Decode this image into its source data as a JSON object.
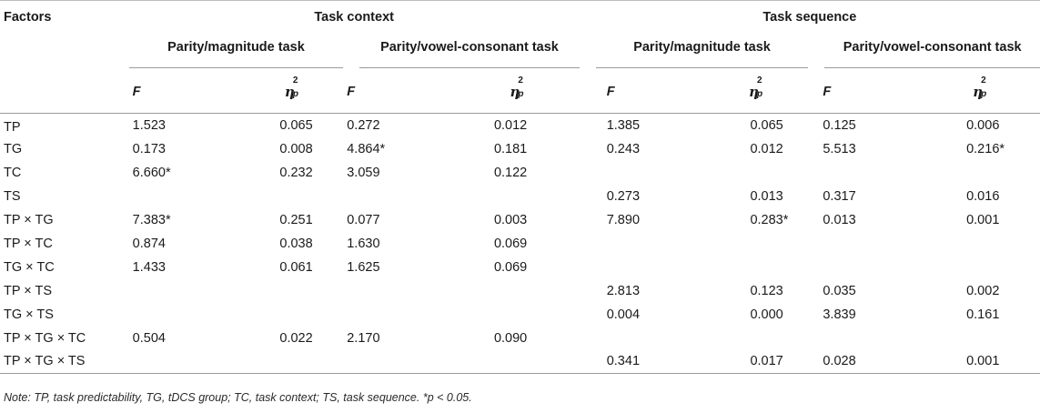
{
  "header": {
    "factors": "Factors",
    "task_context": "Task context",
    "task_sequence": "Task sequence",
    "parity_magnitude": "Parity/magnitude task",
    "parity_vowel": "Parity/vowel-consonant task",
    "f_label": "F",
    "eta_symbol": "η",
    "eta_sup": "2",
    "eta_sub": "p"
  },
  "rows": [
    {
      "factor": "TP",
      "c": [
        "1.523",
        "0.065",
        "0.272",
        "0.012",
        "1.385",
        "0.065",
        "0.125",
        "0.006"
      ]
    },
    {
      "factor": "TG",
      "c": [
        "0.173",
        "0.008",
        "4.864*",
        "0.181",
        "0.243",
        "0.012",
        "5.513",
        "0.216*"
      ]
    },
    {
      "factor": "TC",
      "c": [
        "6.660*",
        "0.232",
        "3.059",
        "0.122",
        "",
        "",
        "",
        ""
      ]
    },
    {
      "factor": "TS",
      "c": [
        "",
        "",
        "",
        "",
        "0.273",
        "0.013",
        "0.317",
        "0.016"
      ]
    },
    {
      "factor": "TP × TG",
      "c": [
        "7.383*",
        "0.251",
        "0.077",
        "0.003",
        "7.890",
        "0.283*",
        "0.013",
        "0.001"
      ]
    },
    {
      "factor": "TP × TC",
      "c": [
        "0.874",
        "0.038",
        "1.630",
        "0.069",
        "",
        "",
        "",
        ""
      ]
    },
    {
      "factor": "TG × TC",
      "c": [
        "1.433",
        "0.061",
        "1.625",
        "0.069",
        "",
        "",
        "",
        ""
      ]
    },
    {
      "factor": "TP × TS",
      "c": [
        "",
        "",
        "",
        "",
        "2.813",
        "0.123",
        "0.035",
        "0.002"
      ]
    },
    {
      "factor": "TG × TS",
      "c": [
        "",
        "",
        "",
        "",
        "0.004",
        "0.000",
        "3.839",
        "0.161"
      ]
    },
    {
      "factor": "TP × TG × TC",
      "c": [
        "0.504",
        "0.022",
        "2.170",
        "0.090",
        "",
        "",
        "",
        ""
      ]
    },
    {
      "factor": "TP × TG × TS",
      "c": [
        "",
        "",
        "",
        "",
        "0.341",
        "0.017",
        "0.028",
        "0.001"
      ]
    }
  ],
  "note": "Note: TP, task predictability, TG, tDCS group; TC, task context; TS, task sequence. *p < 0.05."
}
